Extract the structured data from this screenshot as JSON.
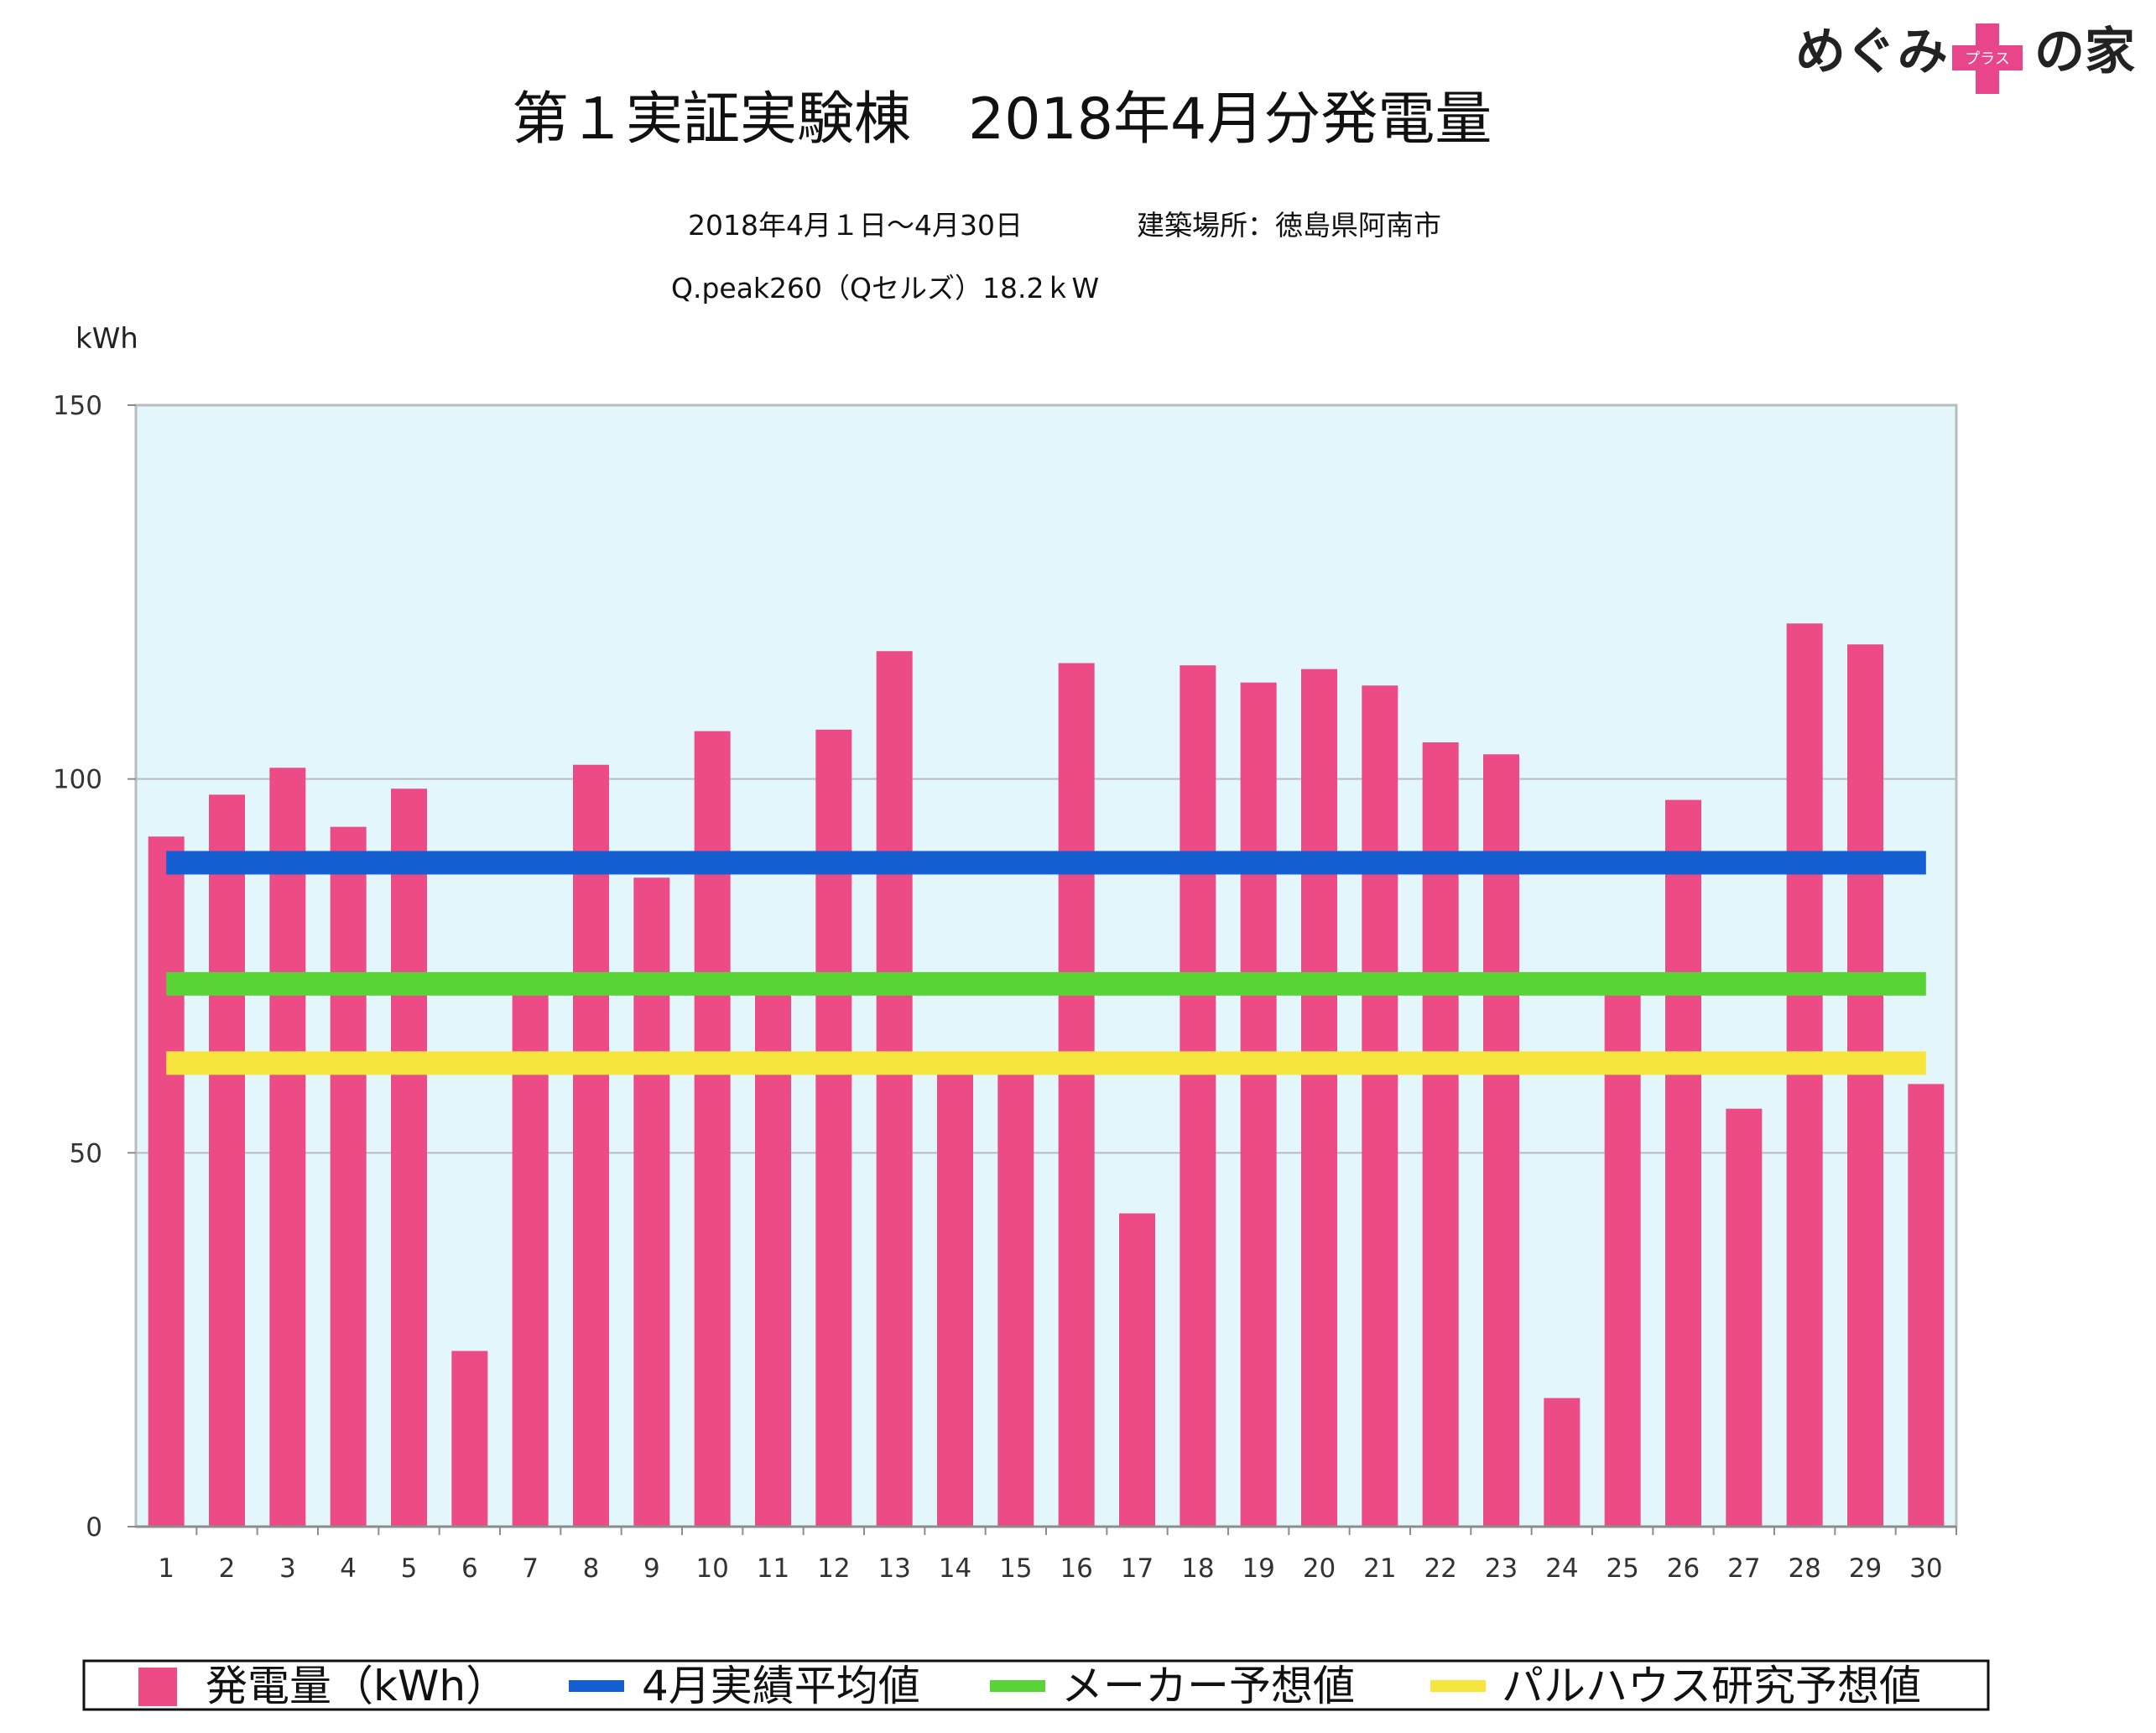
{
  "logo": {
    "text_left": "めぐみ",
    "badge_text": "プラス",
    "text_right": "の家",
    "badge_color": "#e8458a"
  },
  "header": {
    "title": "第１実証実験棟　2018年4月分発電量",
    "period": "2018年4月１日〜4月30日",
    "location": "建築場所：徳島県阿南市",
    "panel": "Q.peak260（Qセルズ）18.2ｋW"
  },
  "colors": {
    "plot_background": "#e2f6fc",
    "bar": "#ec4b86",
    "monthly_average": "#145fd2",
    "maker_forecast": "#58d436",
    "palhouse_forecast": "#f6e53c",
    "grid": "#b9bcbe"
  },
  "chart_data": {
    "type": "bar",
    "title": "第１実証実験棟　2018年4月分発電量",
    "ylabel": "kWh",
    "xlabel": "",
    "ylim": [
      0,
      150
    ],
    "yticks": [
      0,
      50,
      100,
      150
    ],
    "grid": true,
    "legend_position": "bottom",
    "categories": [
      "1",
      "2",
      "3",
      "4",
      "5",
      "6",
      "7",
      "8",
      "9",
      "10",
      "11",
      "12",
      "13",
      "14",
      "15",
      "16",
      "17",
      "18",
      "19",
      "20",
      "21",
      "22",
      "23",
      "24",
      "25",
      "26",
      "27",
      "28",
      "29",
      "30"
    ],
    "series": [
      {
        "name": "発電量（kWh）",
        "type": "bar",
        "values": [
          92.3,
          97.9,
          101.5,
          93.6,
          98.7,
          23.5,
          72,
          101.9,
          86.8,
          106.4,
          72,
          106.6,
          117.1,
          61,
          61,
          115.5,
          41.9,
          115.2,
          112.9,
          114.7,
          112.5,
          104.9,
          103.3,
          17.2,
          72,
          97.2,
          55.9,
          120.8,
          118,
          59.2
        ]
      },
      {
        "name": "4月実績平均値",
        "type": "line",
        "value": 88.8
      },
      {
        "name": "メーカー予想値",
        "type": "line",
        "value": 72.6
      },
      {
        "name": "パルハウス研究予想値",
        "type": "line",
        "value": 62
      }
    ]
  }
}
